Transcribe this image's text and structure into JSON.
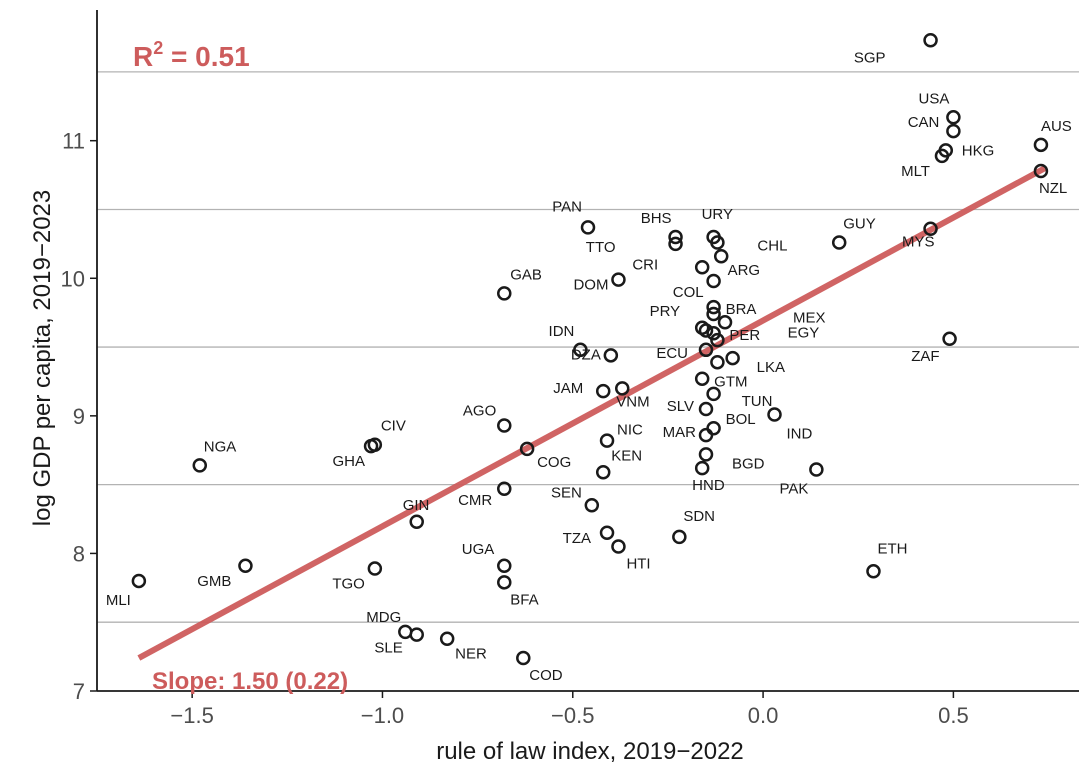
{
  "chart_data": {
    "type": "scatter",
    "xlabel": "rule of law index, 2019−2022",
    "ylabel": "log GDP per capita, 2019−2023",
    "xlim": [
      -1.75,
      0.83
    ],
    "ylim": [
      7.0,
      11.95
    ],
    "x_ticks": [
      -1.5,
      -1.0,
      -0.5,
      0.0,
      0.5
    ],
    "x_tick_labels": [
      "−1.5",
      "−1.0",
      "−0.5",
      "0.0",
      "0.5"
    ],
    "y_ticks": [
      7,
      8,
      9,
      10,
      11
    ],
    "y_tick_labels": [
      "7",
      "8",
      "9",
      "10",
      "11"
    ],
    "grid": "horizontal lines at 7.5, 8.5, 9.5, 10.5, 11.5",
    "r2_label": "R",
    "r2_sup": "2",
    "r2_value": " = 0.51",
    "slope_label": "Slope: 1.50 (0.22)",
    "fit_line": {
      "x": [
        -1.64,
        0.74
      ],
      "y": [
        7.24,
        10.8
      ],
      "color": "#cd5c5c"
    },
    "point_color": "#1a1a1a",
    "points": [
      {
        "label": "SGP",
        "x": 0.44,
        "y": 11.73
      },
      {
        "label": "USA",
        "x": 0.5,
        "y": 11.17
      },
      {
        "label": "CAN",
        "x": 0.5,
        "y": 11.07
      },
      {
        "label": "HKG",
        "x": 0.48,
        "y": 10.93
      },
      {
        "label": "MLT",
        "x": 0.47,
        "y": 10.89
      },
      {
        "label": "AUS",
        "x": 0.73,
        "y": 10.97
      },
      {
        "label": "NZL",
        "x": 0.73,
        "y": 10.78
      },
      {
        "label": "MYS",
        "x": 0.44,
        "y": 10.36
      },
      {
        "label": "GUY",
        "x": 0.2,
        "y": 10.26
      },
      {
        "label": "ZAF",
        "x": 0.49,
        "y": 9.56
      },
      {
        "label": "PAN",
        "x": -0.46,
        "y": 10.37
      },
      {
        "label": "BHS",
        "x": -0.23,
        "y": 10.3
      },
      {
        "label": "URY",
        "x": -0.13,
        "y": 10.3
      },
      {
        "label": "TTO",
        "x": -0.23,
        "y": 10.25
      },
      {
        "label": "CHL",
        "x": -0.12,
        "y": 10.26
      },
      {
        "label": "",
        "x": -0.11,
        "y": 10.16
      },
      {
        "label": "CRI",
        "x": -0.16,
        "y": 10.08
      },
      {
        "label": "ARG",
        "x": -0.13,
        "y": 9.98
      },
      {
        "label": "DOM",
        "x": -0.38,
        "y": 9.99
      },
      {
        "label": "GAB",
        "x": -0.68,
        "y": 9.89
      },
      {
        "label": "COL",
        "x": -0.13,
        "y": 9.79
      },
      {
        "label": "BRA",
        "x": -0.13,
        "y": 9.74
      },
      {
        "label": "MEX",
        "x": -0.1,
        "y": 9.68
      },
      {
        "label": "PRY",
        "x": -0.16,
        "y": 9.64
      },
      {
        "label": "",
        "x": -0.15,
        "y": 9.62
      },
      {
        "label": "EGY",
        "x": -0.13,
        "y": 9.6
      },
      {
        "label": "PER",
        "x": -0.12,
        "y": 9.55
      },
      {
        "label": "DZA",
        "x": -0.4,
        "y": 9.44
      },
      {
        "label": "ECU",
        "x": -0.15,
        "y": 9.48
      },
      {
        "label": "IDN",
        "x": -0.48,
        "y": 9.48
      },
      {
        "label": "LKA",
        "x": -0.08,
        "y": 9.42
      },
      {
        "label": "",
        "x": -0.12,
        "y": 9.39
      },
      {
        "label": "VNM",
        "x": -0.37,
        "y": 9.2
      },
      {
        "label": "GTM",
        "x": -0.16,
        "y": 9.27
      },
      {
        "label": "JAM",
        "x": -0.42,
        "y": 9.18
      },
      {
        "label": "TUN",
        "x": -0.13,
        "y": 9.16
      },
      {
        "label": "SLV",
        "x": -0.15,
        "y": 9.05
      },
      {
        "label": "BOL",
        "x": -0.13,
        "y": 8.91
      },
      {
        "label": "IND",
        "x": 0.03,
        "y": 9.01
      },
      {
        "label": "AGO",
        "x": -0.68,
        "y": 8.93
      },
      {
        "label": "MAR",
        "x": -0.15,
        "y": 8.86
      },
      {
        "label": "NIC",
        "x": -0.41,
        "y": 8.82
      },
      {
        "label": "BGD",
        "x": -0.15,
        "y": 8.72
      },
      {
        "label": "CIV",
        "x": -1.02,
        "y": 8.79
      },
      {
        "label": "GHA",
        "x": -1.03,
        "y": 8.78
      },
      {
        "label": "COG",
        "x": -0.62,
        "y": 8.76
      },
      {
        "label": "NGA",
        "x": -1.48,
        "y": 8.64
      },
      {
        "label": "KEN",
        "x": -0.42,
        "y": 8.59
      },
      {
        "label": "HND",
        "x": -0.16,
        "y": 8.62
      },
      {
        "label": "PAK",
        "x": 0.14,
        "y": 8.61
      },
      {
        "label": "SEN",
        "x": -0.45,
        "y": 8.35
      },
      {
        "label": "CMR",
        "x": -0.68,
        "y": 8.47
      },
      {
        "label": "GIN",
        "x": -0.91,
        "y": 8.23
      },
      {
        "label": "TZA",
        "x": -0.41,
        "y": 8.15
      },
      {
        "label": "SDN",
        "x": -0.22,
        "y": 8.12
      },
      {
        "label": "HTI",
        "x": -0.38,
        "y": 8.05
      },
      {
        "label": "ETH",
        "x": 0.29,
        "y": 7.87
      },
      {
        "label": "UGA",
        "x": -0.68,
        "y": 7.91
      },
      {
        "label": "BFA",
        "x": -0.68,
        "y": 7.79
      },
      {
        "label": "GMB",
        "x": -1.36,
        "y": 7.91
      },
      {
        "label": "TGO",
        "x": -1.02,
        "y": 7.89
      },
      {
        "label": "MLI",
        "x": -1.64,
        "y": 7.8
      },
      {
        "label": "MDG",
        "x": -0.94,
        "y": 7.43
      },
      {
        "label": "SLE",
        "x": -0.91,
        "y": 7.41
      },
      {
        "label": "NER",
        "x": -0.83,
        "y": 7.38
      },
      {
        "label": "COD",
        "x": -0.63,
        "y": 7.24
      }
    ]
  }
}
